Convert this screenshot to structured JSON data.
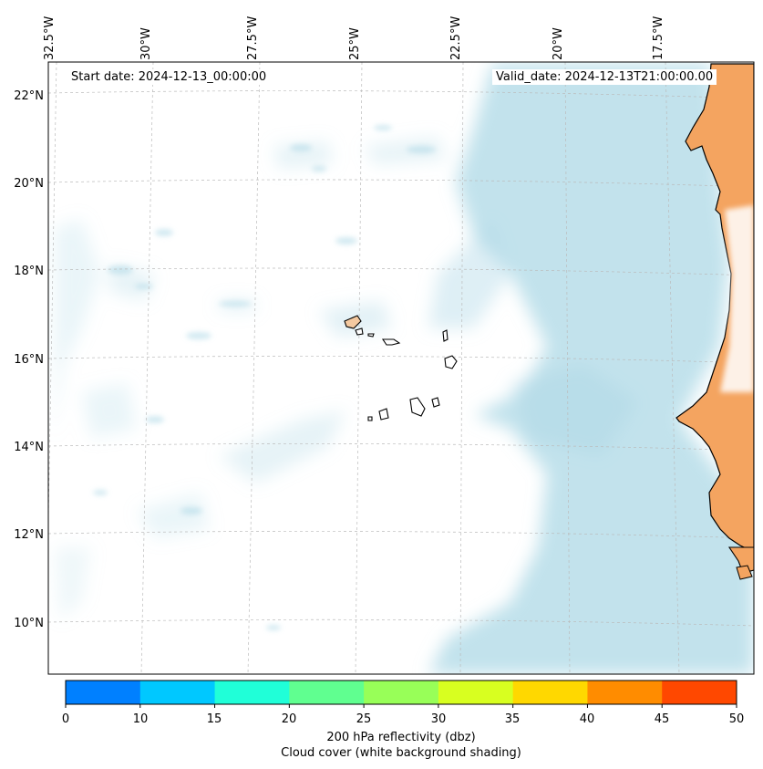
{
  "map": {
    "start_date": "Start date: 2024-12-13_00:00:00",
    "valid_date": "Valid_date: 2024-12-13T21:00:00.00",
    "lon_labels": [
      "32.5°W",
      "30°W",
      "27.5°W",
      "25°W",
      "22.5°W",
      "20°W",
      "17.5°W"
    ],
    "lat_labels": [
      "22°N",
      "20°N",
      "18°N",
      "16°N",
      "14°N",
      "12°N",
      "10°N"
    ],
    "colors": {
      "cloud": "#add8e6",
      "land_high": "#f4a460",
      "coastline": "#000000",
      "gridline": "#bbbbbb"
    }
  },
  "colorbar": {
    "label": "200 hPa reflectivity (dbz)",
    "sublabel": "Cloud cover (white background shading)",
    "ticks": [
      "0",
      "10",
      "15",
      "20",
      "25",
      "30",
      "35",
      "40",
      "45",
      "50"
    ],
    "colors": [
      "#0080ff",
      "#00c8ff",
      "#20ffd8",
      "#60ff90",
      "#98ff58",
      "#d8ff20",
      "#ffd800",
      "#ff8c00",
      "#ff4800"
    ]
  }
}
